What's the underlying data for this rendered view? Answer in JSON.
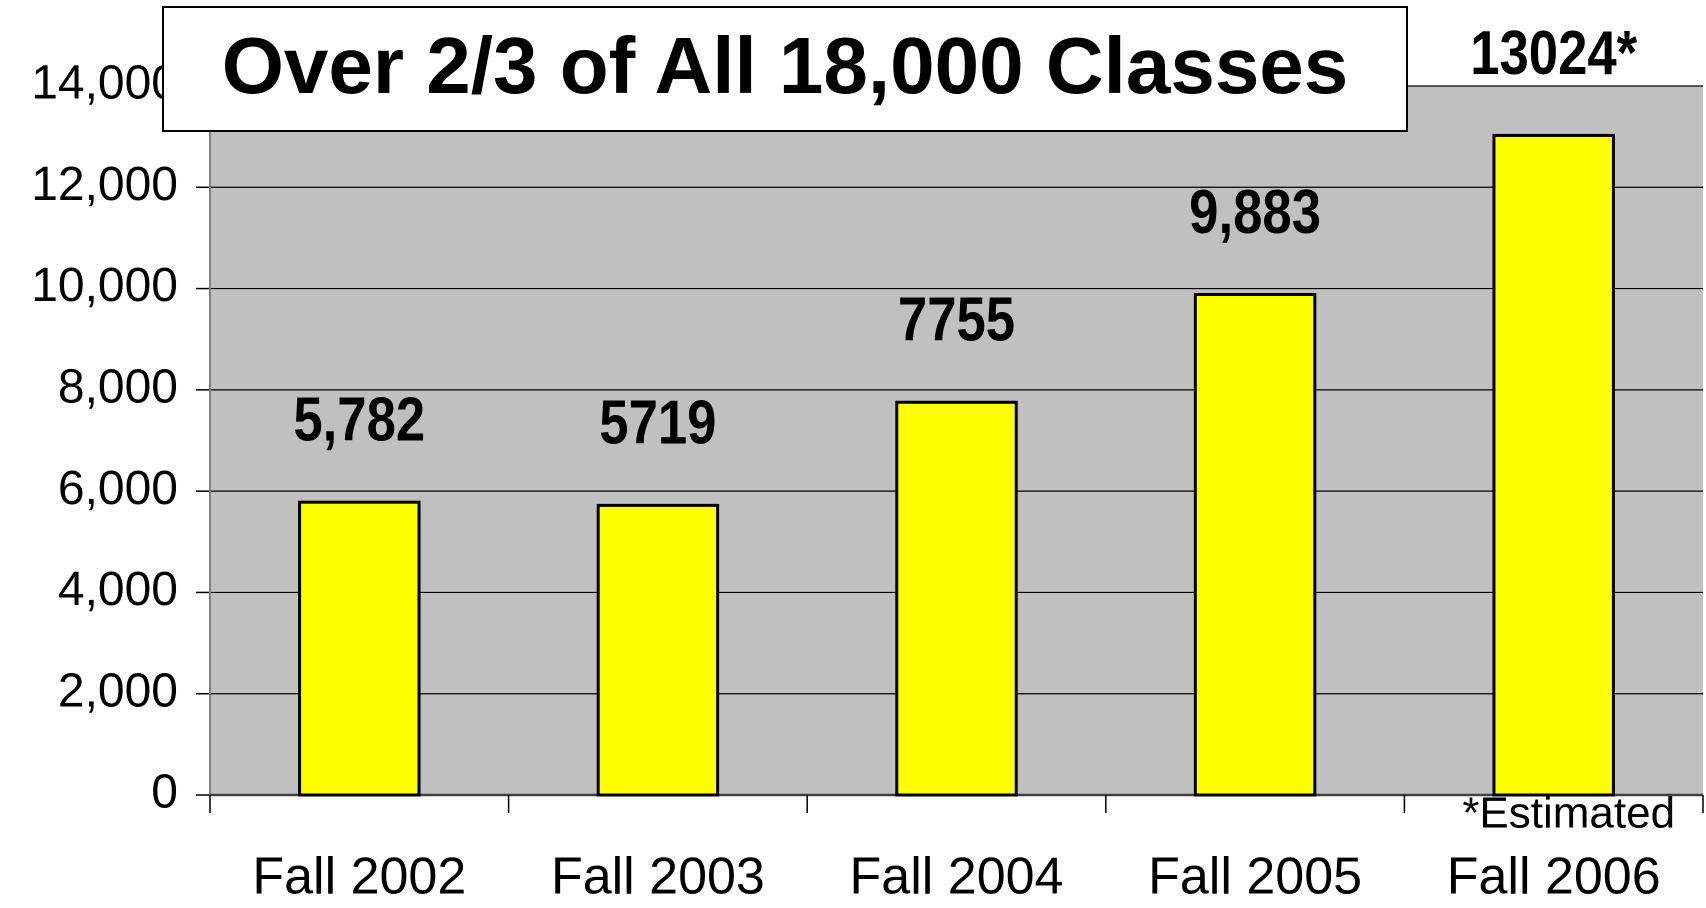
{
  "chart_data": {
    "type": "bar",
    "title": "Over 2/3 of All 18,000 Classes",
    "categories": [
      "Fall 2002",
      "Fall 2003",
      "Fall 2004",
      "Fall 2005",
      "Fall 2006"
    ],
    "values": [
      5782,
      5719,
      7755,
      9883,
      13024
    ],
    "value_labels": [
      "5,782",
      "5719",
      "7755",
      "9,883",
      "13024*"
    ],
    "color": "#ffff00",
    "annotation": "*Estimated",
    "ylim": [
      0,
      14000
    ],
    "yticks": [
      0,
      {
        "value": 2000,
        "label": "2,000"
      },
      {
        "value": 4000,
        "label": "4,000"
      },
      {
        "value": 6000,
        "label": "6,000"
      },
      {
        "value": 8000,
        "label": "8,000"
      },
      {
        "value": 10000,
        "label": "10,000"
      },
      {
        "value": 12000,
        "label": "12,000"
      },
      {
        "value": 14000,
        "label": "14,000"
      }
    ],
    "grid": true
  }
}
